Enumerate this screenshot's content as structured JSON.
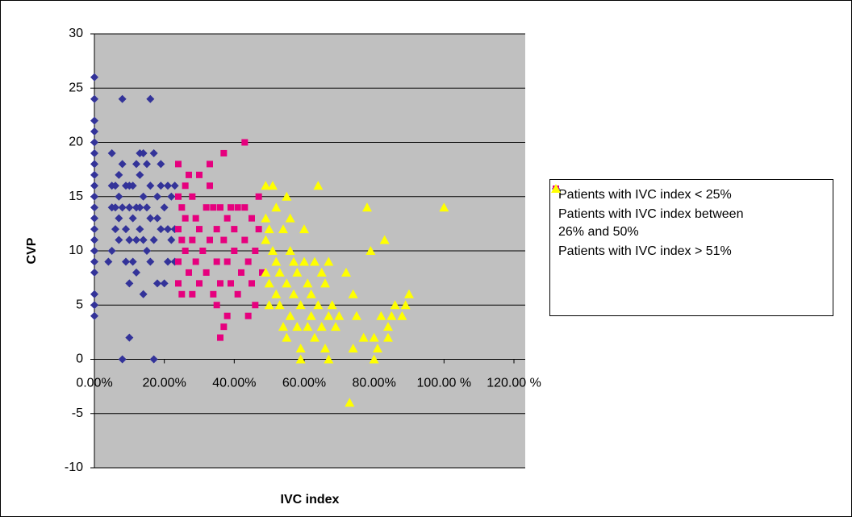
{
  "chart_data": {
    "type": "scatter",
    "xlabel": "IVC index",
    "ylabel": "CVP",
    "xlim": [
      0,
      120
    ],
    "ylim": [
      -10,
      30
    ],
    "xticks": [
      {
        "value": 0,
        "label": "0.00%"
      },
      {
        "value": 20,
        "label": "20.00%"
      },
      {
        "value": 40,
        "label": "40.00%"
      },
      {
        "value": 60,
        "label": "60.00%"
      },
      {
        "value": 80,
        "label": "80.00%"
      },
      {
        "value": 100,
        "label": "100.00 %"
      },
      {
        "value": 120,
        "label": "120.00 %"
      }
    ],
    "yticks": [
      -10,
      -5,
      0,
      5,
      10,
      15,
      20,
      25,
      30
    ],
    "grid": true,
    "legend": "right",
    "series": [
      {
        "name": "Patients with IVC index < 25%",
        "color": "#333399",
        "marker": "diamond",
        "x": [
          0,
          0,
          0,
          0,
          0,
          0,
          0,
          0,
          0,
          0,
          0,
          0,
          0,
          0,
          0,
          0,
          0,
          0,
          0,
          0,
          4,
          5,
          5,
          5,
          5,
          6,
          6,
          6,
          7,
          7,
          7,
          7,
          8,
          8,
          8,
          8,
          9,
          9,
          9,
          10,
          10,
          10,
          10,
          10,
          11,
          11,
          11,
          12,
          12,
          12,
          12,
          13,
          13,
          13,
          13,
          14,
          14,
          14,
          14,
          15,
          15,
          15,
          16,
          16,
          16,
          16,
          17,
          17,
          17,
          18,
          18,
          18,
          19,
          19,
          19,
          20,
          20,
          21,
          21,
          21,
          22,
          22,
          23,
          23,
          23
        ],
        "values": [
          26,
          24,
          22,
          21,
          20,
          19,
          18,
          17,
          16,
          15,
          14,
          13,
          12,
          11,
          10,
          9,
          8,
          6,
          5,
          4,
          9,
          19,
          16,
          14,
          10,
          16,
          14,
          12,
          17,
          15,
          13,
          11,
          24,
          18,
          14,
          0,
          16,
          12,
          9,
          16,
          14,
          11,
          7,
          2,
          16,
          13,
          9,
          18,
          14,
          11,
          8,
          19,
          17,
          14,
          12,
          19,
          15,
          11,
          6,
          18,
          14,
          10,
          24,
          16,
          13,
          9,
          19,
          11,
          0,
          15,
          13,
          7,
          18,
          16,
          12,
          14,
          7,
          16,
          12,
          9,
          15,
          11,
          16,
          12,
          9
        ]
      },
      {
        "name": "Patients with IVC index between 26% and 50%",
        "color": "#e6007e",
        "marker": "square",
        "x": [
          24,
          24,
          24,
          24,
          24,
          25,
          25,
          25,
          26,
          26,
          26,
          27,
          27,
          28,
          28,
          28,
          29,
          29,
          30,
          30,
          30,
          31,
          32,
          32,
          33,
          33,
          33,
          34,
          34,
          35,
          35,
          35,
          36,
          36,
          36,
          37,
          37,
          37,
          38,
          38,
          38,
          39,
          39,
          40,
          40,
          41,
          41,
          42,
          43,
          43,
          43,
          44,
          44,
          45,
          45,
          46,
          46,
          47,
          47,
          48
        ],
        "values": [
          18,
          15,
          12,
          9,
          7,
          14,
          11,
          6,
          16,
          13,
          10,
          17,
          8,
          15,
          11,
          6,
          13,
          9,
          17,
          12,
          7,
          10,
          14,
          8,
          18,
          16,
          11,
          14,
          6,
          12,
          9,
          5,
          14,
          7,
          2,
          19,
          11,
          3,
          13,
          9,
          4,
          14,
          7,
          12,
          10,
          14,
          6,
          8,
          20,
          14,
          11,
          9,
          4,
          13,
          7,
          10,
          5,
          15,
          12,
          8
        ]
      },
      {
        "name": "Patients with IVC index > 51%",
        "color": "#ffff00",
        "marker": "triangle",
        "x": [
          49,
          49,
          49,
          49,
          50,
          50,
          50,
          51,
          51,
          52,
          52,
          52,
          53,
          53,
          54,
          54,
          55,
          55,
          55,
          56,
          56,
          56,
          57,
          57,
          58,
          58,
          59,
          59,
          59,
          60,
          60,
          61,
          61,
          62,
          62,
          63,
          63,
          64,
          64,
          65,
          65,
          66,
          66,
          67,
          67,
          67,
          68,
          69,
          70,
          72,
          73,
          74,
          74,
          75,
          77,
          78,
          79,
          80,
          80,
          81,
          82,
          83,
          84,
          84,
          85,
          86,
          88,
          89,
          90,
          100
        ],
        "values": [
          13,
          11,
          8,
          16,
          12,
          7,
          5,
          10,
          16,
          14,
          9,
          6,
          8,
          5,
          3,
          12,
          15,
          7,
          2,
          13,
          10,
          4,
          6,
          9,
          3,
          8,
          0,
          5,
          1,
          12,
          9,
          3,
          7,
          4,
          6,
          2,
          9,
          16,
          5,
          8,
          3,
          1,
          7,
          9,
          4,
          0,
          5,
          3,
          4,
          8,
          -4,
          1,
          6,
          4,
          2,
          14,
          10,
          2,
          0,
          1,
          4,
          11,
          2,
          3,
          4,
          5,
          4,
          5,
          6,
          14
        ]
      }
    ]
  }
}
